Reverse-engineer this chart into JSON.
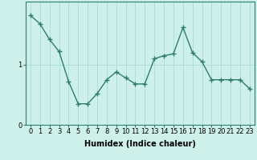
{
  "x": [
    0,
    1,
    2,
    3,
    4,
    5,
    6,
    7,
    8,
    9,
    10,
    11,
    12,
    13,
    14,
    15,
    16,
    17,
    18,
    19,
    20,
    21,
    22,
    23
  ],
  "y": [
    1.82,
    1.68,
    1.42,
    1.22,
    0.72,
    0.35,
    0.35,
    0.52,
    0.75,
    0.88,
    0.78,
    0.68,
    0.68,
    1.1,
    1.15,
    1.18,
    1.62,
    1.2,
    1.05,
    0.75,
    0.75,
    0.75,
    0.75,
    0.6
  ],
  "line_color": "#2e7d6e",
  "marker": "+",
  "marker_size": 4,
  "marker_linewidth": 1.0,
  "bg_color": "#cef0ea",
  "grid_color": "#a8ddd6",
  "xlabel": "Humidex (Indice chaleur)",
  "ylim": [
    0,
    2.05
  ],
  "xlim": [
    -0.5,
    23.5
  ],
  "yticks": [
    0,
    1
  ],
  "xticks": [
    0,
    1,
    2,
    3,
    4,
    5,
    6,
    7,
    8,
    9,
    10,
    11,
    12,
    13,
    14,
    15,
    16,
    17,
    18,
    19,
    20,
    21,
    22,
    23
  ],
  "tick_label_size": 6,
  "xlabel_size": 7,
  "line_width": 1.0,
  "spine_color": "#2e7d6e"
}
